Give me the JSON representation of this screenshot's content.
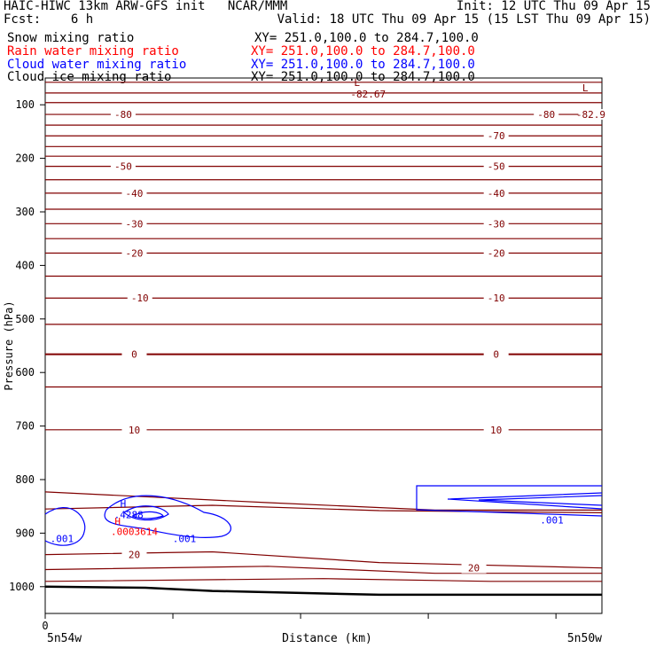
{
  "header": {
    "line1_left": "HAIC-HIWC 13km ARW-GFS init   NCAR/MMM",
    "line1_right": "Init: 12 UTC Thu 09 Apr 15",
    "line2_left": "Fcst:    6 h",
    "line2_right": "Valid: 18 UTC Thu 09 Apr 15 (15 LST Thu 09 Apr 15)"
  },
  "fields": [
    {
      "name": "Snow mixing ratio",
      "xy": "XY= 251.0,100.0 to 284.7,100.0",
      "color": "#000000"
    },
    {
      "name": "Rain water mixing ratio",
      "xy": "XY= 251.0,100.0 to 284.7,100.0",
      "color": "#ff0000"
    },
    {
      "name": "Cloud water mixing ratio",
      "xy": "XY= 251.0,100.0 to 284.7,100.0",
      "color": "#0000ff"
    },
    {
      "name": "Cloud ice mixing ratio",
      "xy": "XY= 251.0,100.0 to 284.7,100.0",
      "color": "#000000"
    }
  ],
  "chart_data": {
    "type": "line",
    "ylabel": "Pressure (hPa)",
    "xlabel": "Distance (km)",
    "ylim": [
      1050,
      50
    ],
    "yticks": [
      100,
      200,
      300,
      400,
      500,
      600,
      700,
      800,
      900,
      1000
    ],
    "x_first_tick_label": "0",
    "x_left_label": "5n54w",
    "x_right_label": "5n50w",
    "contour_color": "#800000",
    "cloud_color": "#0000ff",
    "rain_color": "#ff0000",
    "temperature_contour_labels": [
      {
        "text": "-80",
        "x": 0.14,
        "p": 118
      },
      {
        "text": "-80",
        "x": 0.9,
        "p": 118
      },
      {
        "text": "-82.9",
        "x": 0.98,
        "p": 118
      },
      {
        "text": "-70",
        "x": 0.81,
        "p": 158
      },
      {
        "text": "-50",
        "x": 0.14,
        "p": 215
      },
      {
        "text": "-50",
        "x": 0.81,
        "p": 215
      },
      {
        "text": "-40",
        "x": 0.16,
        "p": 265
      },
      {
        "text": "-40",
        "x": 0.81,
        "p": 265
      },
      {
        "text": "-30",
        "x": 0.16,
        "p": 322
      },
      {
        "text": "-30",
        "x": 0.81,
        "p": 322
      },
      {
        "text": "-20",
        "x": 0.16,
        "p": 377
      },
      {
        "text": "-20",
        "x": 0.81,
        "p": 377
      },
      {
        "text": "-10",
        "x": 0.17,
        "p": 461
      },
      {
        "text": "-10",
        "x": 0.81,
        "p": 461
      },
      {
        "text": "0",
        "x": 0.16,
        "p": 566
      },
      {
        "text": "0",
        "x": 0.81,
        "p": 566
      },
      {
        "text": "10",
        "x": 0.16,
        "p": 707
      },
      {
        "text": "10",
        "x": 0.81,
        "p": 707
      },
      {
        "text": "20",
        "x": 0.16,
        "p": 940
      },
      {
        "text": "20",
        "x": 0.77,
        "p": 965
      }
    ],
    "extrema_labels": [
      {
        "text": "L",
        "x": 0.56,
        "p": 58,
        "color": "#800000"
      },
      {
        "text": "-82.67",
        "x": 0.58,
        "p": 80,
        "color": "#800000"
      },
      {
        "text": "L",
        "x": 0.97,
        "p": 68,
        "color": "#800000"
      },
      {
        "text": "H",
        "x": 0.14,
        "p": 845,
        "color": "#0000ff"
      },
      {
        "text": ".4288",
        "x": 0.15,
        "p": 865,
        "color": "#0000ff"
      },
      {
        "text": "H",
        "x": 0.13,
        "p": 878,
        "color": "#ff0000"
      },
      {
        "text": ".0003614",
        "x": 0.16,
        "p": 897,
        "color": "#ff0000"
      },
      {
        "text": ".001",
        "x": 0.03,
        "p": 910,
        "color": "#0000ff"
      },
      {
        "text": ".001",
        "x": 0.25,
        "p": 910,
        "color": "#0000ff"
      },
      {
        "text": ".001",
        "x": 0.91,
        "p": 875,
        "color": "#0000ff"
      }
    ]
  }
}
